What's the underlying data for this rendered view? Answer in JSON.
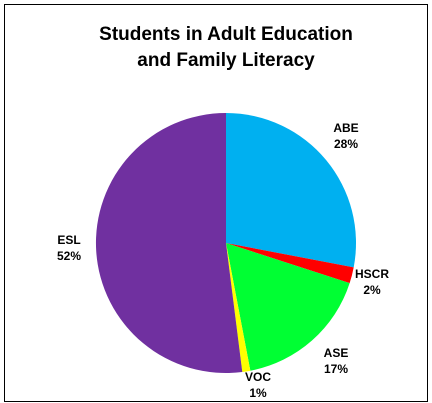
{
  "chart_data": {
    "type": "pie",
    "title_lines": [
      "Students in Adult Education",
      "and Family Literacy"
    ],
    "start": "12 o'clock",
    "direction": "clockwise",
    "slices": [
      {
        "label": "ABE",
        "pct_label": "28%",
        "value": 28,
        "color": "#00B0F0"
      },
      {
        "label": "HSCR",
        "pct_label": "2%",
        "value": 2,
        "color": "#FF0000"
      },
      {
        "label": "ASE",
        "pct_label": "17%",
        "value": 17,
        "color": "#00FF33"
      },
      {
        "label": "VOC",
        "pct_label": "1%",
        "value": 1,
        "color": "#FFFF00"
      },
      {
        "label": "ESL",
        "pct_label": "52%",
        "value": 52,
        "color": "#7030A0"
      }
    ]
  }
}
